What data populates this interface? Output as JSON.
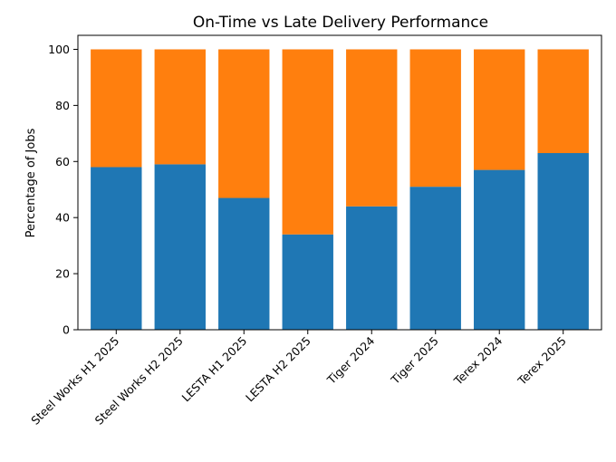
{
  "chart_data": {
    "type": "bar",
    "stacked": true,
    "title": "On-Time vs Late Delivery Performance",
    "xlabel": "",
    "ylabel": "Percentage of Jobs",
    "ylim": [
      0,
      105
    ],
    "yticks": [
      0,
      20,
      40,
      60,
      80,
      100
    ],
    "grid": false,
    "categories": [
      "Steel Works H1 2025",
      "Steel Works H2 2025",
      "LESTA H1 2025",
      "LESTA H2 2025",
      "Tiger 2024",
      "Tiger 2025",
      "Terex 2024",
      "Terex 2025"
    ],
    "series": [
      {
        "color": "#1f77b4",
        "values": [
          58,
          59,
          47,
          34,
          44,
          51,
          57,
          63
        ]
      },
      {
        "color": "#ff7f0e",
        "values": [
          42,
          41,
          53,
          66,
          56,
          49,
          43,
          37
        ]
      }
    ]
  }
}
